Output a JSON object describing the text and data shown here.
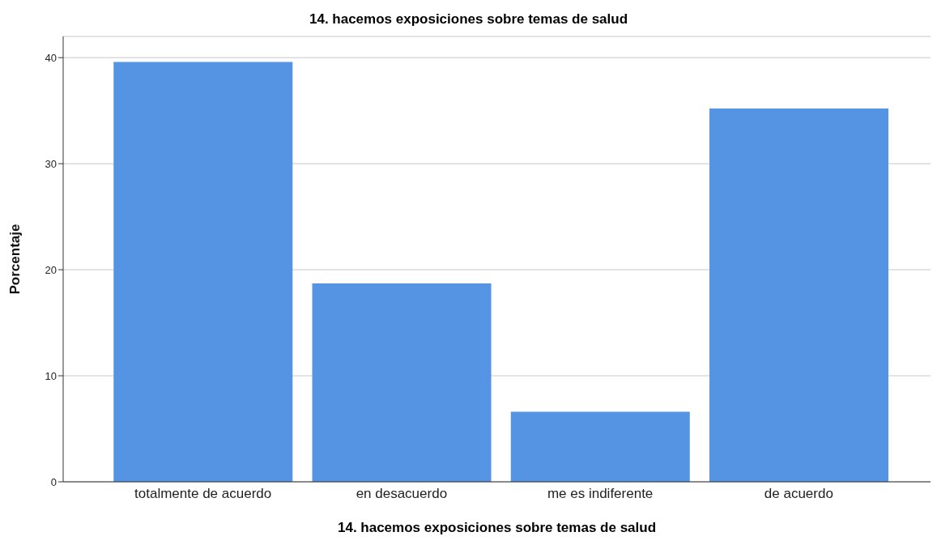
{
  "chart_data": {
    "type": "bar",
    "title": "14. hacemos exposiciones sobre temas de salud",
    "xlabel": "14. hacemos exposiciones sobre temas de salud",
    "ylabel": "Porcentaje",
    "categories": [
      "totalmente de acuerdo",
      "en desacuerdo",
      "me es indiferente",
      "de acuerdo"
    ],
    "values": [
      39.6,
      18.7,
      6.6,
      35.2
    ],
    "color": "#5594e3",
    "ylim": [
      0,
      42
    ],
    "yticks": [
      0,
      10,
      20,
      30,
      40
    ],
    "grid": "y",
    "legend": false
  }
}
